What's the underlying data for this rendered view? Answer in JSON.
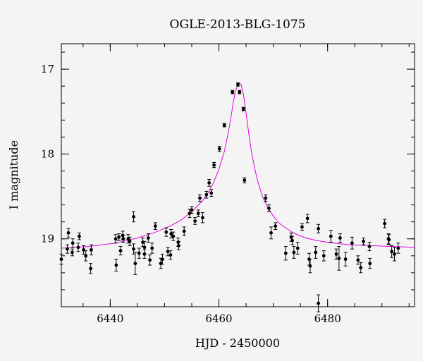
{
  "chart_data": {
    "type": "scatter",
    "title": "OGLE-2013-BLG-1075",
    "xlabel": "HJD - 2450000",
    "ylabel": "I magnitude",
    "xlim": [
      6431,
      6496
    ],
    "ylim": [
      19.8,
      16.7
    ],
    "y_inverted": true,
    "grid": false,
    "legend": "none",
    "xticks": [
      6440,
      6460,
      6480
    ],
    "xtick_labels": [
      "6440",
      "6460",
      "6480"
    ],
    "yticks": [
      17,
      18,
      19
    ],
    "ytick_labels": [
      "17",
      "18",
      "19"
    ],
    "point_color": "#000000",
    "model_color": "#e000e0",
    "series": [
      {
        "type": "points",
        "x": [
          6431.0,
          6432.1,
          6432.3,
          6433.0,
          6433.1,
          6434.1,
          6434.3,
          6435.1,
          6435.5,
          6436.4,
          6436.5,
          6441.0,
          6441.1,
          6441.6,
          6441.9,
          6442.3,
          6442.4,
          6443.3,
          6443.6,
          6444.3,
          6444.3,
          6444.6,
          6445.3,
          6446.0,
          6446.3,
          6446.3,
          6447.0,
          6447.3,
          6447.7,
          6448.3,
          6449.3,
          6449.6,
          6450.3,
          6450.6,
          6451.1,
          6451.2,
          6451.6,
          6452.5,
          6452.6,
          6453.6,
          6454.6,
          6455.0,
          6455.6,
          6456.2,
          6456.5,
          6457.0,
          6457.7,
          6458.2,
          6458.6,
          6459.1,
          6460.1,
          6461.0,
          6462.5,
          6463.5,
          6463.8,
          6464.5,
          6464.7,
          6468.6,
          6469.2,
          6469.6,
          6470.4,
          6472.3,
          6473.3,
          6473.5,
          6473.8,
          6474.5,
          6475.3,
          6476.3,
          6476.6,
          6476.8,
          6477.8,
          6478.3,
          6478.3,
          6479.3,
          6480.6,
          6481.6,
          6482.1,
          6482.3,
          6483.3,
          6484.5,
          6485.6,
          6486.1,
          6486.6,
          6487.7,
          6487.8,
          6490.5,
          6491.2,
          6491.3,
          6491.8,
          6492.3,
          6493.0
        ],
        "y": [
          19.24,
          19.12,
          18.93,
          19.16,
          19.05,
          19.1,
          18.97,
          19.13,
          19.2,
          19.35,
          19.13,
          19.0,
          19.31,
          18.98,
          19.14,
          18.96,
          19.0,
          19.0,
          19.03,
          18.74,
          19.12,
          19.29,
          19.17,
          19.04,
          19.1,
          19.18,
          18.99,
          19.25,
          19.11,
          18.85,
          19.29,
          19.24,
          18.92,
          19.15,
          19.19,
          18.94,
          18.97,
          19.04,
          19.08,
          18.91,
          18.7,
          18.66,
          18.79,
          18.7,
          18.52,
          18.75,
          18.48,
          18.34,
          18.46,
          18.13,
          17.94,
          17.66,
          17.27,
          17.18,
          17.27,
          17.47,
          18.31,
          18.52,
          18.64,
          18.93,
          18.85,
          19.17,
          18.98,
          19.02,
          19.16,
          19.11,
          18.86,
          18.76,
          19.24,
          19.32,
          19.16,
          18.88,
          19.76,
          19.2,
          18.97,
          19.18,
          19.23,
          18.99,
          19.24,
          19.05,
          19.25,
          19.34,
          19.03,
          19.09,
          19.29,
          18.82,
          19.0,
          19.01,
          19.15,
          19.18,
          19.11
        ],
        "y_err": [
          0.06,
          0.05,
          0.05,
          0.04,
          0.05,
          0.05,
          0.04,
          0.05,
          0.06,
          0.06,
          0.06,
          0.05,
          0.07,
          0.04,
          0.05,
          0.05,
          0.04,
          0.05,
          0.05,
          0.06,
          0.06,
          0.13,
          0.06,
          0.05,
          0.07,
          0.05,
          0.05,
          0.06,
          0.06,
          0.04,
          0.06,
          0.06,
          0.05,
          0.05,
          0.05,
          0.05,
          0.05,
          0.05,
          0.05,
          0.05,
          0.05,
          0.04,
          0.04,
          0.04,
          0.04,
          0.06,
          0.04,
          0.04,
          0.04,
          0.03,
          0.03,
          0.02,
          0.02,
          0.02,
          0.02,
          0.02,
          0.03,
          0.04,
          0.04,
          0.07,
          0.04,
          0.08,
          0.05,
          0.05,
          0.07,
          0.07,
          0.04,
          0.05,
          0.07,
          0.08,
          0.07,
          0.05,
          0.1,
          0.06,
          0.07,
          0.06,
          0.14,
          0.05,
          0.08,
          0.07,
          0.05,
          0.06,
          0.04,
          0.05,
          0.06,
          0.05,
          0.06,
          0.06,
          0.07,
          0.08,
          0.06
        ]
      },
      {
        "type": "model",
        "x": [
          6431,
          6436,
          6441,
          6445,
          6448,
          6451,
          6453,
          6455,
          6457,
          6458,
          6459,
          6460,
          6461,
          6461.5,
          6462,
          6462.5,
          6463,
          6463.5,
          6463.8,
          6464.1,
          6464.5,
          6465,
          6465.5,
          6466,
          6466.5,
          6467,
          6468,
          6469,
          6470,
          6471,
          6472,
          6474,
          6476,
          6478,
          6480,
          6484,
          6488,
          6492,
          6496
        ],
        "y": [
          19.11,
          19.09,
          19.05,
          18.99,
          18.93,
          18.85,
          18.78,
          18.68,
          18.55,
          18.46,
          18.34,
          18.18,
          17.97,
          17.82,
          17.65,
          17.45,
          17.27,
          17.18,
          17.17,
          17.18,
          17.29,
          17.52,
          17.76,
          17.98,
          18.14,
          18.29,
          18.5,
          18.63,
          18.73,
          18.81,
          18.86,
          18.94,
          18.99,
          19.02,
          19.04,
          19.07,
          19.08,
          19.09,
          19.1
        ]
      }
    ]
  }
}
